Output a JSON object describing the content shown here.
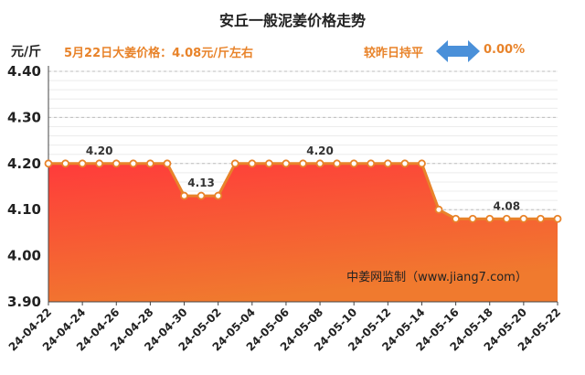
{
  "header": {
    "title": "安丘一般泥姜价格走势",
    "unit_label": "元/斤",
    "price_note": "5月22日大姜价格：4.08元/斤左右",
    "compare_label": "较昨日持平",
    "change_value": "0.00%",
    "arrow_icon": "double-arrow-icon",
    "arrow_color": "#4a90d9",
    "accent_color": "#e8832a"
  },
  "chart_data": {
    "type": "area",
    "title": "安丘一般泥姜价格走势",
    "ylabel": "元/斤",
    "ylim": [
      3.9,
      4.4
    ],
    "yticks": [
      "4.40",
      "4.30",
      "4.20",
      "4.10",
      "4.00",
      "3.90"
    ],
    "grid": true,
    "x_tick_labels": [
      "24-04-22",
      "24-04-24",
      "24-04-26",
      "24-04-28",
      "24-04-30",
      "24-05-02",
      "24-05-04",
      "24-05-06",
      "24-05-08",
      "24-05-10",
      "24-05-12",
      "24-05-14",
      "24-05-16",
      "24-05-18",
      "24-05-20",
      "24-05-22"
    ],
    "x": [
      "24-04-22",
      "24-04-23",
      "24-04-24",
      "24-04-25",
      "24-04-26",
      "24-04-27",
      "24-04-28",
      "24-04-29",
      "24-04-30",
      "24-05-01",
      "24-05-02",
      "24-05-03",
      "24-05-04",
      "24-05-05",
      "24-05-06",
      "24-05-07",
      "24-05-08",
      "24-05-09",
      "24-05-10",
      "24-05-11",
      "24-05-12",
      "24-05-13",
      "24-05-14",
      "24-05-15",
      "24-05-16",
      "24-05-17",
      "24-05-18",
      "24-05-19",
      "24-05-20",
      "24-05-21",
      "24-05-22"
    ],
    "values": [
      4.2,
      4.2,
      4.2,
      4.2,
      4.2,
      4.2,
      4.2,
      4.2,
      4.13,
      4.13,
      4.13,
      4.2,
      4.2,
      4.2,
      4.2,
      4.2,
      4.2,
      4.2,
      4.2,
      4.2,
      4.2,
      4.2,
      4.2,
      4.1,
      4.08,
      4.08,
      4.08,
      4.08,
      4.08,
      4.08,
      4.08
    ],
    "annotations": [
      {
        "index": 3,
        "text": "4.20"
      },
      {
        "index": 9,
        "text": "4.13"
      },
      {
        "index": 16,
        "text": "4.20"
      },
      {
        "index": 27,
        "text": "4.08"
      }
    ],
    "watermark": "中姜网监制（www.jiang7.com）",
    "line_color": "#e8832a",
    "fill_top_color": "#ff3b3b",
    "fill_bottom_color": "#f07a2e"
  }
}
